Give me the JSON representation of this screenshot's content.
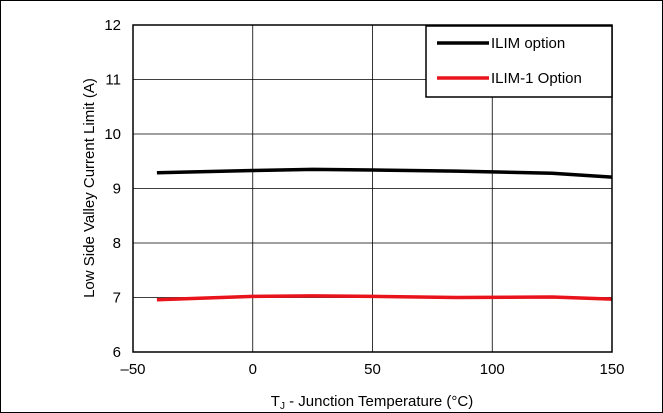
{
  "chart_data": {
    "type": "line",
    "xlabel_main": "T",
    "xlabel_sub": "J",
    "xlabel_rest": " - Junction Temperature (°C)",
    "ylabel": "Low Side Valley Current Limit (A)",
    "xlim": [
      -50,
      150
    ],
    "ylim": [
      6,
      12
    ],
    "x_ticks": [
      -50,
      0,
      50,
      100,
      150
    ],
    "x_tick_labels": [
      "–50",
      "0",
      "50",
      "100",
      "150"
    ],
    "y_ticks": [
      6,
      7,
      8,
      9,
      10,
      11,
      12
    ],
    "y_tick_labels": [
      "6",
      "7",
      "8",
      "9",
      "10",
      "11",
      "12"
    ],
    "grid": true,
    "legend_position": "top-right",
    "series": [
      {
        "name": "ILIM option",
        "color": "#000000",
        "x": [
          -40,
          0,
          25,
          50,
          85,
          125,
          150
        ],
        "y": [
          9.29,
          9.33,
          9.35,
          9.34,
          9.32,
          9.28,
          9.21
        ]
      },
      {
        "name": "ILIM-1 Option",
        "color": "#e8131b",
        "x": [
          -40,
          0,
          25,
          50,
          85,
          125,
          150
        ],
        "y": [
          6.96,
          7.02,
          7.03,
          7.02,
          7.0,
          7.01,
          6.97
        ]
      }
    ]
  }
}
